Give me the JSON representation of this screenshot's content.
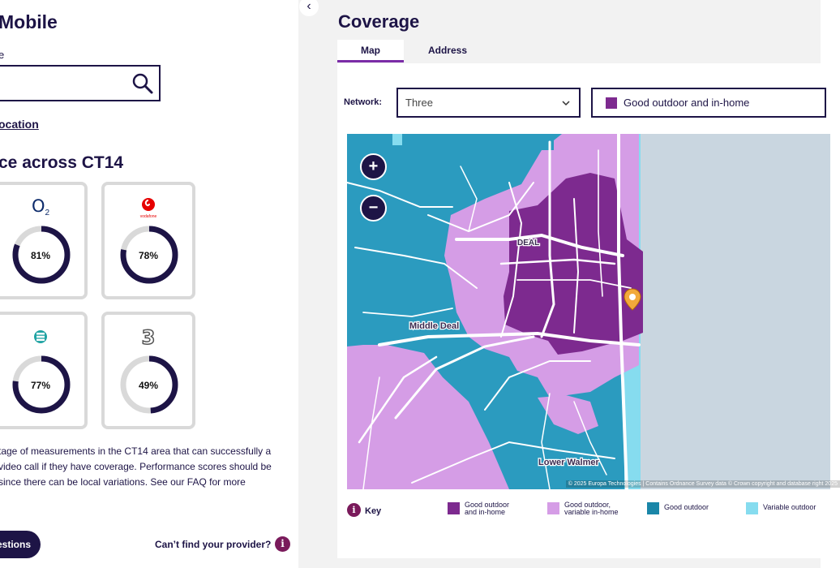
{
  "left": {
    "title": "Mobile",
    "postcode_label": "e",
    "postcode_value": "",
    "search_icon": "search-icon",
    "location_link": "ocation",
    "heading": "ce across CT14",
    "cards": [
      {
        "provider": "O2",
        "logo_text": "O",
        "logo_sub": "2",
        "score": "81%",
        "fraction": 0.81
      },
      {
        "provider": "Vodafone",
        "logo_text": "vodafone",
        "score": "78%",
        "fraction": 0.78
      },
      {
        "provider": "EE",
        "score": "77%",
        "fraction": 0.77
      },
      {
        "provider": "Three",
        "logo_text": "3",
        "score": "49%",
        "fraction": 0.49
      }
    ],
    "description": "tage of measurements in the CT14 area that can successfully a video call if they have coverage. Performance scores should be since there can be local variations. See our FAQ for more",
    "faq_button": "estions",
    "provider_link": "Can’t find your provider?",
    "info_icon": "i"
  },
  "divider": {
    "collapse_icon": "‹"
  },
  "right": {
    "title": "Coverage",
    "tabs": [
      {
        "label": "Map",
        "active": true
      },
      {
        "label": "Address",
        "active": false
      }
    ],
    "network_label": "Network:",
    "network_value": "Three",
    "layer_value": "Good outdoor and in-home",
    "map": {
      "zoom_in": "+",
      "zoom_out": "−",
      "place_labels": [
        "DEAL",
        "Middle Deal",
        "Lower Walmer"
      ],
      "attribution": "© 2025 Europa Technologies | Contains Ordnance Survey data © Crown copyright and database right 2025"
    },
    "key": {
      "icon": "i",
      "label": "Key",
      "items": [
        {
          "label_1": "Good outdoor",
          "label_2": "and in-home",
          "color": "#7d2a8f"
        },
        {
          "label_1": "Good outdoor,",
          "label_2": "variable in-home",
          "color": "#d59de6"
        },
        {
          "label_1": "Good outdoor",
          "label_2": "",
          "color": "#1a86a8"
        },
        {
          "label_1": "Variable outdoor",
          "label_2": "",
          "color": "#86dcef"
        }
      ]
    }
  },
  "colors": {
    "navy": "#1d1446",
    "accent_purple": "#7b2ca7",
    "ring_track": "#d9d9d9",
    "sea": "#c9d6e0"
  }
}
